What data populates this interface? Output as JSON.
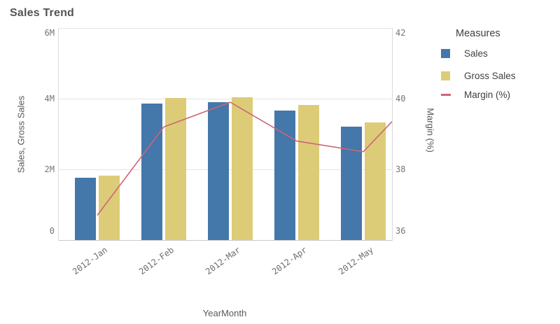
{
  "title": "Sales Trend",
  "legend": {
    "title": "Measures",
    "items": [
      {
        "label": "Sales",
        "color": "#4477aa",
        "swatch": "box"
      },
      {
        "label": "Gross Sales",
        "color": "#ddcc77",
        "swatch": "box"
      },
      {
        "label": "Margin (%)",
        "color": "#cc6677",
        "swatch": "line"
      }
    ]
  },
  "chart_data": {
    "type": "combo",
    "categories": [
      "2012-Jan",
      "2012-Feb",
      "2012-Mar",
      "2012-Apr",
      "2012-May"
    ],
    "series": [
      {
        "name": "Sales",
        "type": "bar",
        "axis": "left",
        "color": "#4477aa",
        "values": [
          1760000,
          3870000,
          3900000,
          3660000,
          3200000
        ]
      },
      {
        "name": "Gross Sales",
        "type": "bar",
        "axis": "left",
        "color": "#ddcc77",
        "values": [
          1830000,
          4020000,
          4040000,
          3820000,
          3330000
        ]
      },
      {
        "name": "Margin (%)",
        "type": "line",
        "axis": "right",
        "color": "#cc6677",
        "values": [
          36.7,
          39.2,
          39.9,
          38.8,
          38.5
        ],
        "exit_right_value": 39.35
      }
    ],
    "left_axis": {
      "title": "Sales, Gross Sales",
      "range": [
        0,
        6000000
      ],
      "ticks": [
        "6M",
        "4M",
        "2M",
        "0"
      ]
    },
    "right_axis": {
      "title": "Margin (%)",
      "range": [
        36,
        42
      ],
      "ticks": [
        "42",
        "40",
        "38",
        "36"
      ]
    },
    "x_axis": {
      "title": "YearMonth"
    },
    "grid": true,
    "legend_position": "right"
  }
}
